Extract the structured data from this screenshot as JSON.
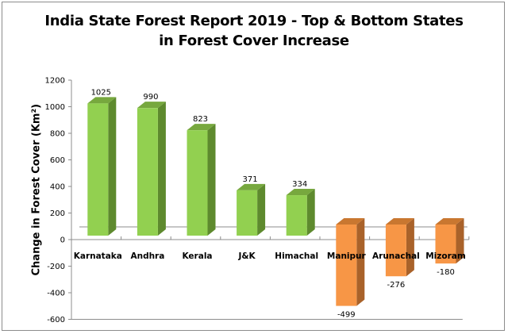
{
  "title_line1": "India State Forest Report 2019 - Top & Bottom States",
  "title_line2": "in Forest Cover Increase",
  "y_axis_label": "Change in Forest Cover (Km²)",
  "colors": {
    "positive_front": "#92d050",
    "positive_top": "#77a83e",
    "positive_side": "#5e8a2e",
    "negative_front": "#f79646",
    "negative_top": "#c97730",
    "negative_side": "#a9622a",
    "axis": "#8c8c8c"
  },
  "chart_data": {
    "type": "bar",
    "title": "India State Forest Report 2019 - Top & Bottom States in Forest Cover Increase",
    "xlabel": "",
    "ylabel": "Change in Forest Cover (Km²)",
    "categories": [
      "Karnataka",
      "Andhra",
      "Kerala",
      "J&K",
      "Himachal",
      "Manipur",
      "Arunachal",
      "Mizoram"
    ],
    "values": [
      1025,
      990,
      823,
      371,
      334,
      -499,
      -276,
      -180
    ],
    "ylim": [
      -600,
      1200
    ],
    "yticks": [
      1200,
      1000,
      800,
      600,
      400,
      200,
      0,
      -200,
      -400,
      -600
    ],
    "grid": false,
    "legend": null,
    "style": "3d-column"
  }
}
